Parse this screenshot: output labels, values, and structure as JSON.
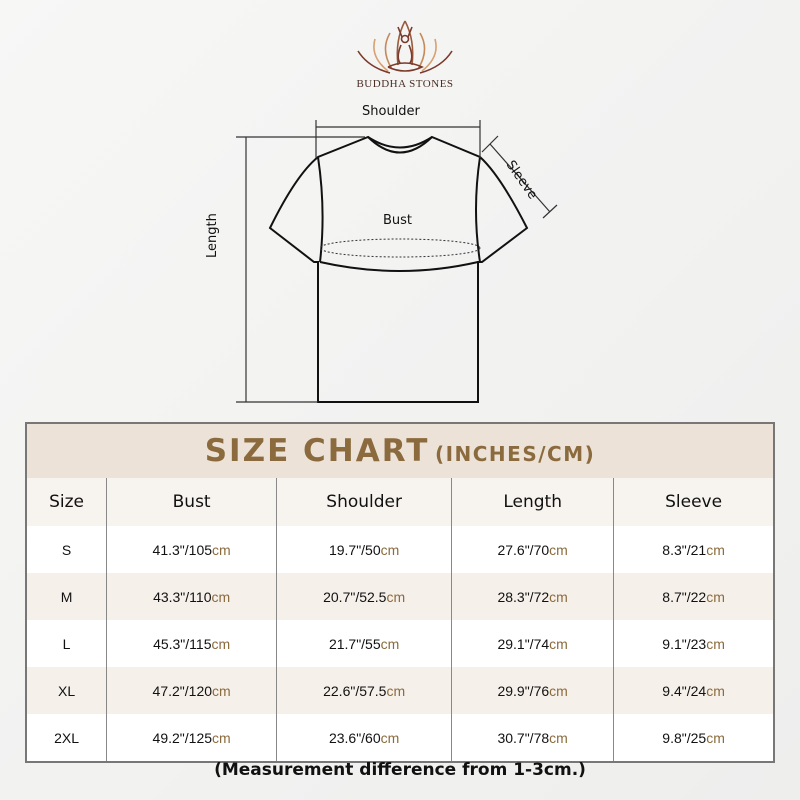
{
  "brand": {
    "name": "BUDDHA STONES",
    "logo_icon": "lotus-meditation-logo",
    "color": "#8b5a3c"
  },
  "diagram": {
    "labels": {
      "shoulder": "Shoulder",
      "sleeve": "Sleeve",
      "bust": "Bust",
      "length": "Length"
    }
  },
  "table": {
    "title": "SIZE CHART",
    "title_units": "(INCHES/CM)",
    "accent_color": "#8b6b3d",
    "headers": [
      "Size",
      "Bust",
      "Shoulder",
      "Length",
      "Sleeve"
    ],
    "rows": [
      {
        "size": "S",
        "values": [
          [
            "41.3\"/105",
            "cm"
          ],
          [
            "19.7\"/50",
            "cm"
          ],
          [
            "27.6\"/70",
            "cm"
          ],
          [
            "8.3\"/21",
            "cm"
          ]
        ]
      },
      {
        "size": "M",
        "values": [
          [
            "43.3\"/110",
            "cm"
          ],
          [
            "20.7\"/52.5",
            "cm"
          ],
          [
            "28.3\"/72",
            "cm"
          ],
          [
            "8.7\"/22",
            "cm"
          ]
        ]
      },
      {
        "size": "L",
        "values": [
          [
            "45.3\"/115",
            "cm"
          ],
          [
            "21.7\"/55",
            "cm"
          ],
          [
            "29.1\"/74",
            "cm"
          ],
          [
            "9.1\"/23",
            "cm"
          ]
        ]
      },
      {
        "size": "XL",
        "values": [
          [
            "47.2\"/120",
            "cm"
          ],
          [
            "22.6\"/57.5",
            "cm"
          ],
          [
            "29.9\"/76",
            "cm"
          ],
          [
            "9.4\"/24",
            "cm"
          ]
        ]
      },
      {
        "size": "2XL",
        "values": [
          [
            "49.2\"/125",
            "cm"
          ],
          [
            "23.6\"/60",
            "cm"
          ],
          [
            "30.7\"/78",
            "cm"
          ],
          [
            "9.8\"/25",
            "cm"
          ]
        ]
      }
    ]
  },
  "footnote": "(Measurement difference from 1-3cm.)"
}
